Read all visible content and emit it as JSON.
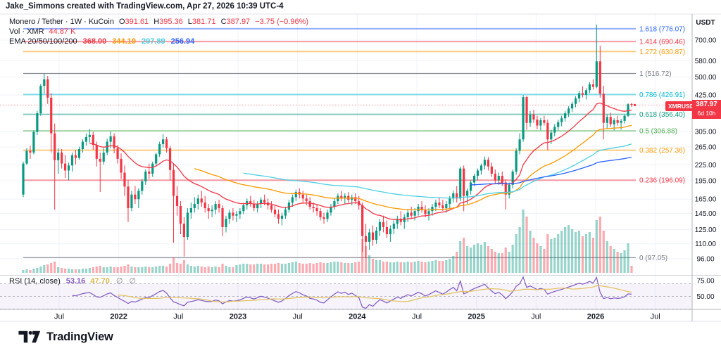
{
  "attribution": "Jake_Simmons created with TradingView.com, Apr 27, 2026 10:39 UTC-4",
  "header": {
    "symbol_title": "Monero / Tether · 1W · KuCoin",
    "ohlc": [
      {
        "k": "O",
        "v": "391.61"
      },
      {
        "k": "H",
        "v": "395.36"
      },
      {
        "k": "L",
        "v": "381.71"
      },
      {
        "k": "C",
        "v": "387.97"
      }
    ],
    "change": "−3.75 (−0.96%)",
    "vol_label": "Vol · XMR",
    "vol_value": "44.87 K",
    "ema_label": "EMA 20/50/100/200",
    "ema_values": [
      "368.00",
      "344.19",
      "297.89",
      "256.94"
    ]
  },
  "rsi_legend": {
    "label": "RSI (14, close)",
    "value_main": "53.16",
    "value_ma": "47.70",
    "disabled_icon": "∅"
  },
  "price_badge": {
    "symbol": "XMRUSDT",
    "price": "387.97",
    "countdown": "6d 10h"
  },
  "axes": {
    "currency": "USDT",
    "price_ticks": [
      700,
      580,
      500,
      425,
      305,
      265,
      225,
      195,
      165,
      145,
      125,
      110,
      96
    ],
    "rsi_ticks": [
      75,
      50
    ],
    "time_labels": [
      "Jul",
      "2022",
      "Jul",
      "2023",
      "Jul",
      "2024",
      "Jul",
      "2025",
      "Jul",
      "2026",
      "Jul"
    ]
  },
  "fib_levels": [
    {
      "level": "1.618",
      "price": 776.07,
      "color": "#2962FF"
    },
    {
      "level": "1.414",
      "price": 690.46,
      "color": "#F23645"
    },
    {
      "level": "1.272",
      "price": 630.87,
      "color": "#FF9800"
    },
    {
      "level": "1",
      "price": 516.72,
      "color": "#787B86"
    },
    {
      "level": "0.786",
      "price": 426.91,
      "color": "#00BCD4"
    },
    {
      "level": "0.618",
      "price": 356.4,
      "color": "#089981"
    },
    {
      "level": "0.5",
      "price": 306.88,
      "color": "#4CAF50"
    },
    {
      "level": "0.382",
      "price": 257.36,
      "color": "#FF9800"
    },
    {
      "level": "0.236",
      "price": 196.09,
      "color": "#F23645"
    },
    {
      "level": "0",
      "price": 97.05,
      "color": "#787B86"
    }
  ],
  "colors": {
    "up": "#089981",
    "down": "#F23645",
    "ema20": "#F23645",
    "ema50": "#FF9800",
    "ema100": "#4DD0E1",
    "ema200": "#2962FF",
    "rsi": "#7E57C2",
    "rsi_ma": "#E2C25A",
    "badge": "#F23645",
    "grid": "#F0F3FA",
    "axis_text": "#131722",
    "frame": "#E0E3EB",
    "separator": "#B2B5BE"
  },
  "logo": {
    "brand": "TradingView"
  },
  "chart_data": {
    "type": "candlestick",
    "title": "Monero / Tether",
    "symbol": "XMRUSDT",
    "exchange": "KuCoin",
    "timeframe": "1W",
    "last_close": 387.97,
    "change": -3.75,
    "change_pct": -0.96,
    "y_axis": {
      "scale": "log",
      "unit": "USDT",
      "ticks": [
        700,
        580,
        500,
        425,
        305,
        265,
        225,
        195,
        165,
        145,
        125,
        110,
        96
      ]
    },
    "x_axis": {
      "start": "Mar 2021",
      "end": "Apr 2026",
      "ticks": [
        "Jul",
        "2022",
        "Jul",
        "2023",
        "Jul",
        "2024",
        "Jul",
        "2025",
        "Jul",
        "2026",
        "Jul"
      ]
    },
    "indicators": {
      "ema": {
        "periods": [
          20,
          50,
          100,
          200
        ],
        "current": [
          368.0,
          344.19,
          297.89,
          256.94
        ]
      },
      "volume": {
        "label": "Vol · XMR",
        "current": "44.87 K"
      },
      "rsi": {
        "period": 14,
        "source": "close",
        "current": 53.16,
        "ma_current": 47.7,
        "bands": [
          70,
          30
        ]
      }
    },
    "fib_retracement": {
      "low": 97.05,
      "high": 516.72
    },
    "columns": [
      "open",
      "high",
      "low",
      "close",
      "volume_rel"
    ],
    "candles": [
      [
        172,
        232,
        168,
        228,
        4
      ],
      [
        228,
        262,
        225,
        256,
        5
      ],
      [
        256,
        268,
        238,
        252,
        4
      ],
      [
        252,
        308,
        248,
        304,
        6
      ],
      [
        304,
        368,
        296,
        360,
        7
      ],
      [
        360,
        470,
        352,
        462,
        9
      ],
      [
        462,
        517,
        430,
        490,
        11
      ],
      [
        490,
        505,
        392,
        415,
        12
      ],
      [
        415,
        432,
        252,
        300,
        14
      ],
      [
        300,
        328,
        150,
        235,
        16
      ],
      [
        235,
        262,
        208,
        252,
        8
      ],
      [
        252,
        260,
        218,
        228,
        7
      ],
      [
        228,
        246,
        200,
        214,
        6
      ],
      [
        214,
        230,
        196,
        224,
        6
      ],
      [
        224,
        252,
        212,
        246,
        5
      ],
      [
        246,
        258,
        226,
        240,
        5
      ],
      [
        240,
        266,
        236,
        260,
        5
      ],
      [
        260,
        284,
        252,
        278,
        6
      ],
      [
        278,
        300,
        268,
        290,
        6
      ],
      [
        290,
        312,
        276,
        296,
        7
      ],
      [
        296,
        304,
        258,
        270,
        8
      ],
      [
        270,
        278,
        222,
        238,
        9
      ],
      [
        238,
        252,
        176,
        232,
        10
      ],
      [
        232,
        262,
        226,
        252,
        8
      ],
      [
        252,
        286,
        246,
        278,
        8
      ],
      [
        278,
        305,
        262,
        292,
        9
      ],
      [
        292,
        300,
        250,
        262,
        8
      ],
      [
        262,
        270,
        228,
        238,
        8
      ],
      [
        238,
        250,
        198,
        210,
        9
      ],
      [
        210,
        224,
        170,
        185,
        10
      ],
      [
        185,
        196,
        134,
        152,
        12
      ],
      [
        152,
        178,
        148,
        172,
        9
      ],
      [
        172,
        186,
        158,
        165,
        8
      ],
      [
        165,
        182,
        152,
        178,
        8
      ],
      [
        178,
        198,
        172,
        194,
        8
      ],
      [
        194,
        216,
        188,
        212,
        9
      ],
      [
        212,
        228,
        198,
        208,
        8
      ],
      [
        208,
        232,
        202,
        228,
        8
      ],
      [
        228,
        252,
        222,
        248,
        9
      ],
      [
        248,
        278,
        242,
        272,
        10
      ],
      [
        272,
        298,
        264,
        284,
        10
      ],
      [
        284,
        290,
        252,
        262,
        9
      ],
      [
        262,
        268,
        196,
        215,
        13
      ],
      [
        215,
        228,
        111,
        170,
        22
      ],
      [
        170,
        186,
        142,
        155,
        14
      ],
      [
        155,
        162,
        120,
        132,
        13
      ],
      [
        132,
        140,
        98,
        117,
        18
      ],
      [
        117,
        152,
        114,
        146,
        12
      ],
      [
        146,
        160,
        138,
        152,
        10
      ],
      [
        152,
        168,
        146,
        158,
        9
      ],
      [
        158,
        172,
        150,
        166,
        10
      ],
      [
        166,
        178,
        154,
        160,
        9
      ],
      [
        160,
        170,
        146,
        152,
        8
      ],
      [
        152,
        158,
        138,
        148,
        9
      ],
      [
        148,
        156,
        140,
        150,
        8
      ],
      [
        150,
        162,
        144,
        158,
        9
      ],
      [
        158,
        164,
        146,
        152,
        8
      ],
      [
        152,
        156,
        118,
        128,
        13
      ],
      [
        128,
        142,
        122,
        138,
        10
      ],
      [
        138,
        150,
        132,
        146,
        8
      ],
      [
        146,
        152,
        136,
        142,
        8
      ],
      [
        142,
        148,
        134,
        144,
        11
      ],
      [
        144,
        152,
        138,
        148,
        12
      ],
      [
        148,
        160,
        144,
        156,
        13
      ],
      [
        156,
        166,
        150,
        162,
        13
      ],
      [
        162,
        170,
        154,
        158,
        12
      ],
      [
        158,
        164,
        148,
        152,
        12
      ],
      [
        152,
        162,
        146,
        158,
        13
      ],
      [
        158,
        168,
        152,
        164,
        13
      ],
      [
        164,
        172,
        156,
        160,
        12
      ],
      [
        160,
        166,
        150,
        156,
        12
      ],
      [
        156,
        162,
        146,
        150,
        13
      ],
      [
        150,
        156,
        140,
        144,
        13
      ],
      [
        144,
        150,
        132,
        138,
        14
      ],
      [
        138,
        146,
        130,
        142,
        13
      ],
      [
        142,
        154,
        138,
        150,
        13
      ],
      [
        150,
        164,
        146,
        160,
        14
      ],
      [
        160,
        172,
        154,
        168,
        15
      ],
      [
        168,
        180,
        162,
        176,
        16
      ],
      [
        176,
        182,
        166,
        172,
        14
      ],
      [
        172,
        178,
        160,
        166,
        13
      ],
      [
        166,
        172,
        156,
        162,
        13
      ],
      [
        162,
        168,
        150,
        154,
        14
      ],
      [
        154,
        160,
        146,
        152,
        13
      ],
      [
        152,
        158,
        142,
        148,
        14
      ],
      [
        148,
        152,
        136,
        140,
        15
      ],
      [
        140,
        146,
        132,
        138,
        14
      ],
      [
        138,
        150,
        134,
        146,
        14
      ],
      [
        146,
        158,
        142,
        154,
        15
      ],
      [
        154,
        166,
        150,
        162,
        16
      ],
      [
        162,
        174,
        158,
        170,
        16
      ],
      [
        170,
        178,
        162,
        166,
        15
      ],
      [
        166,
        174,
        158,
        170,
        14
      ],
      [
        170,
        176,
        160,
        164,
        14
      ],
      [
        164,
        172,
        156,
        168,
        14
      ],
      [
        168,
        174,
        158,
        162,
        15
      ],
      [
        162,
        170,
        150,
        156,
        16
      ],
      [
        156,
        160,
        102,
        118,
        48
      ],
      [
        118,
        132,
        97,
        112,
        38
      ],
      [
        112,
        126,
        104,
        122,
        25
      ],
      [
        122,
        130,
        108,
        114,
        20
      ],
      [
        114,
        128,
        110,
        124,
        18
      ],
      [
        124,
        138,
        118,
        134,
        18
      ],
      [
        134,
        142,
        122,
        128,
        16
      ],
      [
        128,
        136,
        116,
        120,
        16
      ],
      [
        120,
        130,
        112,
        126,
        15
      ],
      [
        126,
        136,
        120,
        132,
        15
      ],
      [
        132,
        142,
        126,
        138,
        16
      ],
      [
        138,
        148,
        130,
        134,
        15
      ],
      [
        134,
        144,
        126,
        140,
        15
      ],
      [
        140,
        150,
        134,
        146,
        16
      ],
      [
        146,
        154,
        138,
        142,
        15
      ],
      [
        142,
        152,
        136,
        148,
        16
      ],
      [
        148,
        158,
        142,
        154,
        17
      ],
      [
        154,
        162,
        146,
        150,
        16
      ],
      [
        150,
        156,
        140,
        144,
        15
      ],
      [
        144,
        152,
        136,
        148,
        16
      ],
      [
        148,
        158,
        142,
        154,
        17
      ],
      [
        154,
        164,
        148,
        160,
        18
      ],
      [
        160,
        168,
        152,
        156,
        17
      ],
      [
        156,
        164,
        148,
        152,
        17
      ],
      [
        152,
        162,
        146,
        158,
        18
      ],
      [
        158,
        170,
        152,
        166,
        20
      ],
      [
        166,
        178,
        160,
        174,
        24
      ],
      [
        174,
        186,
        160,
        166,
        30
      ],
      [
        166,
        222,
        162,
        218,
        45
      ],
      [
        218,
        224,
        148,
        170,
        50
      ],
      [
        170,
        182,
        158,
        178,
        38
      ],
      [
        178,
        196,
        172,
        192,
        36
      ],
      [
        192,
        208,
        186,
        204,
        40
      ],
      [
        204,
        218,
        196,
        214,
        42
      ],
      [
        214,
        228,
        206,
        224,
        40
      ],
      [
        224,
        243,
        216,
        236,
        44
      ],
      [
        236,
        242,
        214,
        222,
        38
      ],
      [
        222,
        230,
        202,
        208,
        34
      ],
      [
        208,
        216,
        190,
        196,
        30
      ],
      [
        196,
        210,
        188,
        204,
        28
      ],
      [
        204,
        212,
        186,
        192,
        28
      ],
      [
        192,
        198,
        150,
        172,
        36
      ],
      [
        172,
        192,
        166,
        188,
        30
      ],
      [
        188,
        216,
        182,
        212,
        40
      ],
      [
        212,
        262,
        206,
        256,
        55
      ],
      [
        256,
        300,
        248,
        284,
        65
      ],
      [
        284,
        425,
        278,
        417,
        90
      ],
      [
        417,
        422,
        310,
        330,
        80
      ],
      [
        330,
        368,
        318,
        356,
        60
      ],
      [
        356,
        372,
        330,
        340,
        50
      ],
      [
        340,
        352,
        312,
        322,
        42
      ],
      [
        322,
        345,
        308,
        338,
        38
      ],
      [
        338,
        352,
        322,
        330,
        34
      ],
      [
        330,
        340,
        258,
        284,
        55
      ],
      [
        284,
        310,
        272,
        302,
        48
      ],
      [
        302,
        326,
        292,
        318,
        50
      ],
      [
        318,
        340,
        308,
        332,
        55
      ],
      [
        332,
        352,
        320,
        344,
        60
      ],
      [
        344,
        368,
        334,
        360,
        65
      ],
      [
        360,
        384,
        348,
        376,
        68
      ],
      [
        376,
        400,
        364,
        392,
        62
      ],
      [
        392,
        420,
        380,
        412,
        58
      ],
      [
        412,
        442,
        398,
        432,
        60
      ],
      [
        432,
        460,
        416,
        426,
        52
      ],
      [
        426,
        452,
        408,
        444,
        55
      ],
      [
        444,
        478,
        432,
        468,
        58
      ],
      [
        468,
        490,
        446,
        458,
        50
      ],
      [
        458,
        806,
        452,
        577,
        75
      ],
      [
        577,
        665,
        415,
        430,
        80
      ],
      [
        430,
        462,
        284,
        330,
        60
      ],
      [
        330,
        356,
        312,
        348,
        45
      ],
      [
        348,
        362,
        318,
        326,
        38
      ],
      [
        326,
        344,
        308,
        338,
        34
      ],
      [
        338,
        352,
        322,
        330,
        30
      ],
      [
        330,
        342,
        310,
        336,
        28
      ],
      [
        336,
        356,
        328,
        352,
        32
      ],
      [
        352,
        394,
        348,
        391,
        42
      ],
      [
        391.61,
        395.36,
        381.71,
        387.97,
        10
      ]
    ]
  }
}
